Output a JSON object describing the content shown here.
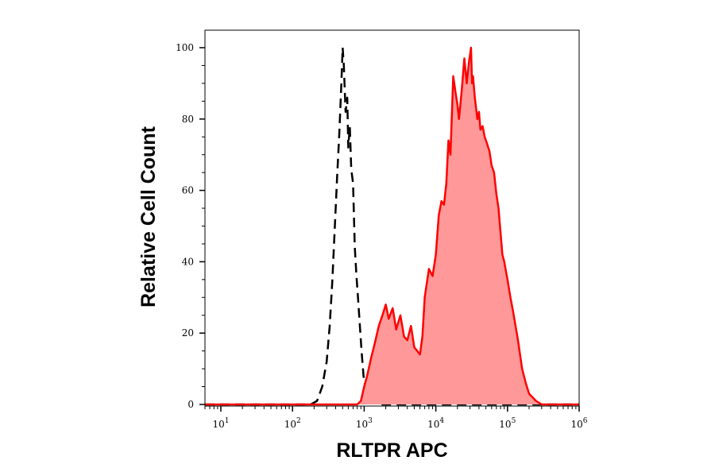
{
  "chart_data": {
    "type": "area",
    "title": "",
    "xlabel": "RLTPR APC",
    "ylabel": "Relative Cell Count",
    "x_scale": "log",
    "xlim": [
      6,
      1000000
    ],
    "ylim": [
      0,
      100
    ],
    "x_ticks": [
      {
        "value": 10,
        "base": "10",
        "exp": "1"
      },
      {
        "value": 100,
        "base": "10",
        "exp": "2"
      },
      {
        "value": 1000,
        "base": "10",
        "exp": "3"
      },
      {
        "value": 10000,
        "base": "10",
        "exp": "4"
      },
      {
        "value": 100000,
        "base": "10",
        "exp": "5"
      },
      {
        "value": 1000000,
        "base": "10",
        "exp": "6"
      }
    ],
    "y_ticks": [
      {
        "value": 0,
        "label": "0"
      },
      {
        "value": 20,
        "label": "20"
      },
      {
        "value": 40,
        "label": "40"
      },
      {
        "value": 60,
        "label": "60"
      },
      {
        "value": 80,
        "label": "80"
      },
      {
        "value": 100,
        "label": "100"
      }
    ],
    "grid": false,
    "legend": "none",
    "colors": {
      "stained_line": "#ff0000",
      "stained_fill": "#ff9999",
      "control_line": "#000000"
    },
    "series": [
      {
        "style": "dashed-unfilled",
        "x": [
          6,
          180,
          220,
          260,
          300,
          330,
          360,
          390,
          420,
          450,
          480,
          500,
          520,
          550,
          580,
          600,
          630,
          660,
          700,
          740,
          780,
          820,
          870,
          920,
          980,
          1050,
          1150,
          1300,
          1500,
          2000,
          5000,
          1000000
        ],
        "y": [
          0,
          0,
          1,
          5,
          12,
          22,
          35,
          50,
          64,
          76,
          90,
          100,
          95,
          82,
          86,
          72,
          78,
          66,
          62,
          44,
          36,
          30,
          22,
          15,
          8,
          4,
          2,
          1,
          0,
          0,
          0,
          0
        ]
      },
      {
        "style": "solid-filled",
        "x": [
          6,
          800,
          900,
          1000,
          1100,
          1250,
          1400,
          1600,
          1800,
          2000,
          2200,
          2500,
          2800,
          3200,
          3600,
          4000,
          4500,
          5000,
          5500,
          6000,
          6500,
          7000,
          8000,
          9000,
          10000,
          11000,
          12000,
          13000,
          14000,
          15000,
          16000,
          17500,
          19000,
          20000,
          21000,
          23000,
          25000,
          27000,
          29000,
          31000,
          32000,
          33000,
          35000,
          38000,
          40000,
          42000,
          45000,
          48000,
          52000,
          56000,
          60000,
          65000,
          70000,
          75000,
          80000,
          85000,
          90000,
          100000,
          110000,
          120000,
          140000,
          160000,
          180000,
          200000,
          250000,
          300000,
          1000000
        ],
        "y": [
          0,
          0,
          1,
          5,
          8,
          13,
          17,
          22,
          25,
          28,
          24,
          27,
          21,
          25,
          19,
          18,
          22,
          16,
          15,
          14,
          19,
          30,
          38,
          36,
          42,
          53,
          57,
          56,
          62,
          74,
          70,
          92,
          87,
          84,
          80,
          88,
          97,
          90,
          96,
          100,
          90,
          92,
          86,
          80,
          82,
          77,
          78,
          75,
          73,
          71,
          67,
          65,
          59,
          55,
          48,
          42,
          40,
          35,
          30,
          26,
          18,
          10,
          6,
          3,
          1,
          0,
          0
        ]
      }
    ]
  }
}
